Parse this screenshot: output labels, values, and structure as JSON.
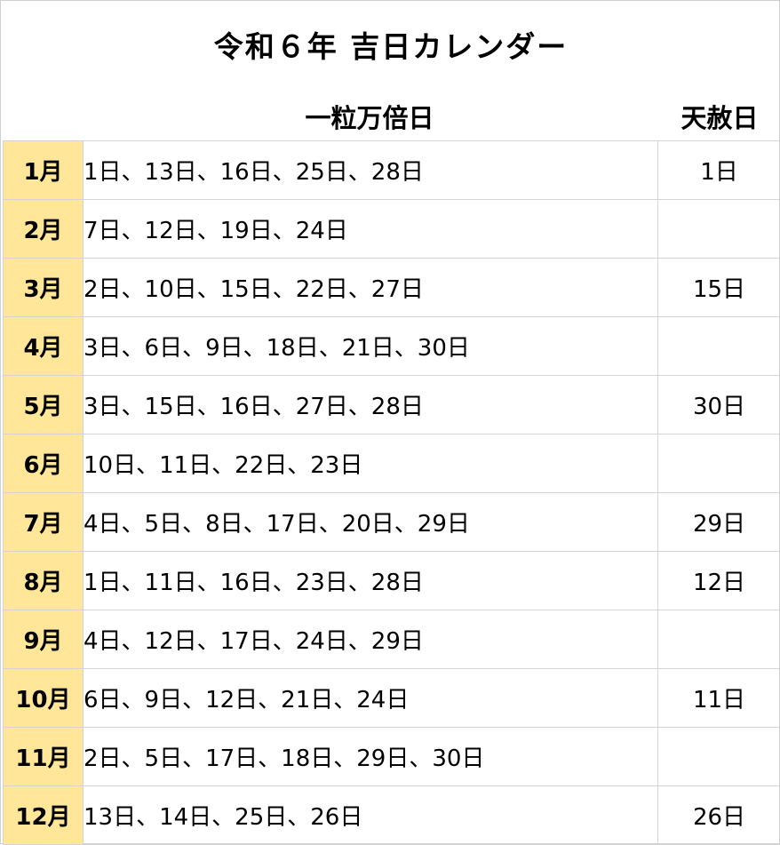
{
  "title": "令和６年 吉日カレンダー",
  "headers": {
    "ichiryu": "一粒万倍日",
    "tensha": "天赦日"
  },
  "colors": {
    "month_bg": "#ffe699",
    "grid": "#d4d4d4"
  },
  "rows": [
    {
      "month": "1月",
      "ichiryu": "1日、13日、16日、25日、28日",
      "tensha": "1日"
    },
    {
      "month": "2月",
      "ichiryu": "7日、12日、19日、24日",
      "tensha": ""
    },
    {
      "month": "3月",
      "ichiryu": "2日、10日、15日、22日、27日",
      "tensha": "15日"
    },
    {
      "month": "4月",
      "ichiryu": "3日、6日、9日、18日、21日、30日",
      "tensha": ""
    },
    {
      "month": "5月",
      "ichiryu": "3日、15日、16日、27日、28日",
      "tensha": "30日"
    },
    {
      "month": "6月",
      "ichiryu": "10日、11日、22日、23日",
      "tensha": ""
    },
    {
      "month": "7月",
      "ichiryu": "4日、5日、8日、17日、20日、29日",
      "tensha": "29日"
    },
    {
      "month": "8月",
      "ichiryu": "1日、11日、16日、23日、28日",
      "tensha": "12日"
    },
    {
      "month": "9月",
      "ichiryu": "4日、12日、17日、24日、29日",
      "tensha": ""
    },
    {
      "month": "10月",
      "ichiryu": "6日、9日、12日、21日、24日",
      "tensha": "11日"
    },
    {
      "month": "11月",
      "ichiryu": "2日、5日、17日、18日、29日、30日",
      "tensha": ""
    },
    {
      "month": "12月",
      "ichiryu": "13日、14日、25日、26日",
      "tensha": "26日"
    }
  ]
}
